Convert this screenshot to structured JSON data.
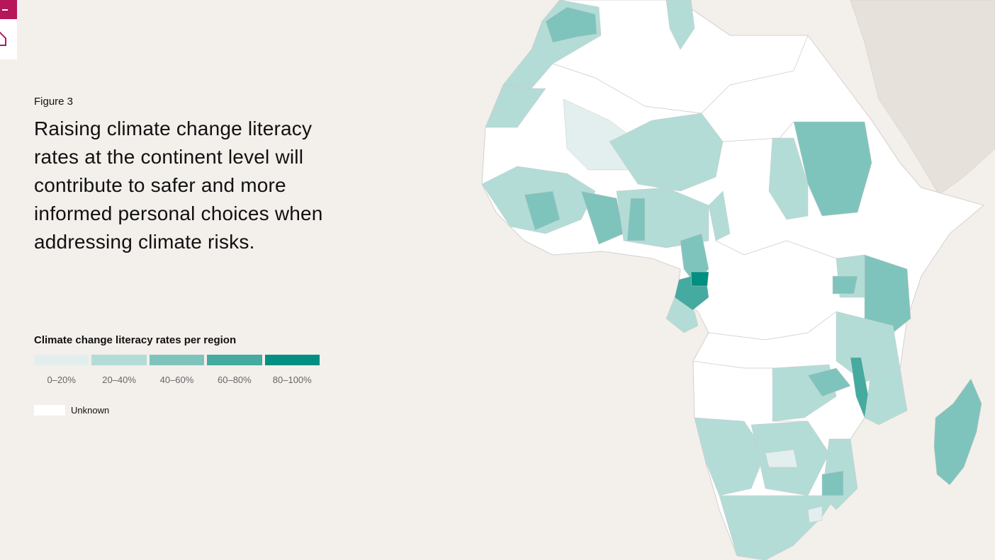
{
  "nav": {
    "menu_icon": "menu-icon",
    "home_icon": "home-icon",
    "accent_color": "#b5175a"
  },
  "figure": {
    "label": "Figure 3",
    "title": "Raising climate change literacy rates at the continent level will contribute to safer and more informed personal choices when addressing climate risks."
  },
  "legend": {
    "title": "Climate change literacy rates per region",
    "bins": [
      {
        "label": "0–20%",
        "color": "#e3efee"
      },
      {
        "label": "20–40%",
        "color": "#b3dcd7"
      },
      {
        "label": "40–60%",
        "color": "#7fc4bc"
      },
      {
        "label": "60–80%",
        "color": "#45aa9f"
      },
      {
        "label": "80–100%",
        "color": "#008f80"
      }
    ],
    "unknown_label": "Unknown",
    "unknown_color": "#ffffff"
  },
  "map_colors": {
    "ocean": "#f3efeb",
    "land_outside": "#e6e1da",
    "unknown": "#ffffff",
    "border": "#c9c9c9"
  }
}
